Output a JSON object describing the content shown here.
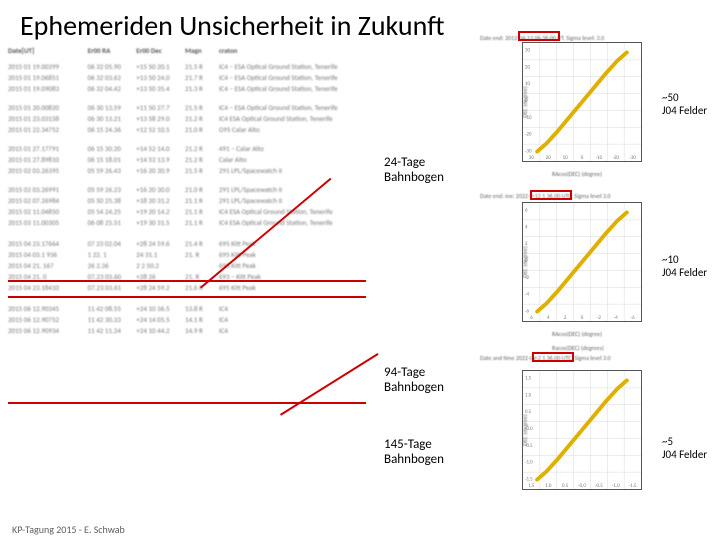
{
  "title": "Ephemeriden Unsicherheit in Zukunft",
  "footer": "KP-Tagung 2015 - E. Schwab",
  "table": {
    "headers": {
      "date": "Date[UT]",
      "ra": "Er00 RA",
      "dec": "Er00 Dec",
      "mag": "Magn",
      "site": "craton"
    },
    "rows": [
      [
        "2015 01 19.00399",
        "06 32 05.90",
        "+15 50 20.1",
        "21.5 R",
        "IC4 – ESA Optical Ground Station, Tenerife"
      ],
      [
        "2015 01 19.06851",
        "06 32 03.62",
        "+13 50 24.0",
        "21.7 R",
        "IC4 – ESA Optical Ground Station, Tenerife"
      ],
      [
        "2015 01 19.09083",
        "06 32 04.42",
        "+13 50 35.4",
        "21.3 R",
        "IC4 – ESA Optical Ground Station, Tenerife"
      ],
      [
        "2015 01 20.00820",
        "06 30 13.59",
        "+11 50 27.7",
        "21.5 R",
        "IC4 – ESA Optical Ground Station, Tenerife"
      ],
      [
        "2015 01 23.03158",
        "06 30 13.21",
        "+13 58 29.0",
        "21.2 R",
        "IC4  ESA Optical Ground Station, Tenerife"
      ],
      [
        "2015 01 22.34752",
        "06 15 24.36",
        "+12 52 10.5",
        "21.0 R",
        "G95  Calar Alto"
      ],
      [
        "2015 01 27.17791",
        "06 15 30.20",
        "+14 52 14.0",
        "21.2 R",
        "491 – Calar Alto"
      ],
      [
        "2015 01 27.89810",
        "06 15 18.01",
        "+14 53 13.9",
        "21.2 R",
        "    Calar Alto"
      ],
      [
        "2015 02 03.26395",
        "05 59 26.43",
        "+16 20 30.9",
        "21.5 R",
        "291  LPL/Spacewatch II"
      ],
      [
        "2015 02 03.26991",
        "05 59 26.23",
        "+16 20 30.0",
        "21.0 R",
        "291  LPL/Spacewatch II"
      ],
      [
        "2015 02 07.26984",
        "05 50 25.38",
        "+18 20 31.2",
        "21.1 R",
        "291  LPL/Spacewatch II"
      ],
      [
        "2015 02 11.04850",
        "05 54 24.25",
        "+19 20 14.2",
        "21.1 R",
        "IC4  ESA Optical Ground Station, Tenerife"
      ],
      [
        "2015 03 11.00305",
        "06 08 25.51",
        "+19 30 31.5",
        "21.1 R",
        "IC4  ESA Optical Ground Station, Tenerife"
      ],
      [
        "2015 04 23.17664",
        "07 23 02.04",
        "+28 24 59.6",
        "21.4 R",
        "695  Kitt Peak"
      ],
      [
        "2015 04 03.1 936",
        "  1 22. 1",
        "  24 31.1",
        "21. R",
        "695  Kitt Peak"
      ],
      [
        "2015 04 21. 167",
        "  26 2.36",
        " 2 2 50.2",
        "    ",
        "695  Kitt Peak"
      ],
      [
        "2015 04 21. 0 ",
        "07.23 03.60",
        "+28  26 ",
        "21. R",
        "693 – Kitt Peak"
      ],
      [
        "2015 04 23.18410",
        "07.23 03.61",
        "+28 24 59.2",
        "21.6 R",
        "695  Kitt Peak"
      ],
      [
        "2015 06 12.90345",
        "11 42 08.55",
        "+24 10 36.5",
        "13.8 R",
        "IC4"
      ],
      [
        "2015 06 12.90752",
        "11 42 30.33",
        "+24 14 05.5",
        "14.1 R",
        "IC4"
      ],
      [
        "2015 06 12.90934",
        "11 42 11.24",
        "+24 10 44.2",
        "14.9 R",
        "IC4"
      ]
    ]
  },
  "labels": {
    "arc24": {
      "l1": "24-Tage",
      "l2": "Bahnbogen"
    },
    "arc94": {
      "l1": "94-Tage",
      "l2": "Bahnbogen"
    },
    "arc145": {
      "l1": "145-Tage",
      "l2": "Bahnbogen"
    }
  },
  "annotations": {
    "a50": {
      "l1": "~50",
      "l2": "J04 Felder"
    },
    "a10": {
      "l1": "~10",
      "l2": "J04 Felder"
    },
    "a5": {
      "l1": "~5",
      "l2": "J04 Felder"
    }
  },
  "charts": {
    "xlabel": "RAcos(DEC) (degree)",
    "ylabel": "DEC (degree)",
    "chart1": {
      "caption_prefix": "Date end:",
      "caption_date": "2012-04-13",
      "caption_suffix": "06:36:00 UT, Sigma level: 3.0",
      "xticks": [
        "30",
        "20",
        "10",
        "0",
        "-10",
        "-20",
        "-30"
      ],
      "yticks": [
        "-30",
        "-20",
        "-10",
        "0",
        "10",
        "20",
        "30"
      ],
      "background": "#ffffff",
      "grid_color": "#d8d8d8",
      "curve_color": "#e0b000",
      "curve_points": [
        [
          0.12,
          0.92
        ],
        [
          0.2,
          0.85
        ],
        [
          0.3,
          0.74
        ],
        [
          0.4,
          0.62
        ],
        [
          0.5,
          0.5
        ],
        [
          0.6,
          0.38
        ],
        [
          0.7,
          0.26
        ],
        [
          0.8,
          0.15
        ],
        [
          0.88,
          0.08
        ]
      ],
      "curve_width": 4
    },
    "chart2": {
      "caption_prefix": "Date end: me:",
      "caption_date": "2022-V-12 1",
      "caption_suffix": "36.00 UTC, Sigma level 3.0",
      "xticks": [
        "6",
        "4",
        "2",
        "0",
        "-2",
        "-4",
        "-6"
      ],
      "yticks": [
        "-6",
        "-4",
        "-2",
        "0",
        "2",
        "4",
        "6"
      ],
      "background": "#ffffff",
      "grid_color": "#d8d8d8",
      "curve_color": "#e0b000",
      "curve_points": [
        [
          0.12,
          0.92
        ],
        [
          0.2,
          0.85
        ],
        [
          0.3,
          0.74
        ],
        [
          0.4,
          0.62
        ],
        [
          0.5,
          0.5
        ],
        [
          0.6,
          0.38
        ],
        [
          0.7,
          0.26
        ],
        [
          0.8,
          0.15
        ],
        [
          0.88,
          0.08
        ]
      ],
      "curve_width": 4
    },
    "chart3": {
      "caption_line1": "Racos(DEC) (degrees)",
      "caption_prefix": "Date and time",
      "caption_date": "2022-0V-2 1",
      "caption_suffix": "36.00 UTC, Sigma level 3.0",
      "xticks": [
        "1.5",
        "1.0",
        "0.5",
        "-0.0",
        "-0.5",
        "-1.0",
        "-1.5"
      ],
      "yticks": [
        "-1.5",
        "-1.0",
        "-0.5",
        "-0.0",
        "0.5",
        "1.0",
        "1.5"
      ],
      "background": "#ffffff",
      "grid_color": "#d8d8d8",
      "curve_color": "#e0b000",
      "curve_points": [
        [
          0.12,
          0.92
        ],
        [
          0.2,
          0.85
        ],
        [
          0.3,
          0.74
        ],
        [
          0.4,
          0.62
        ],
        [
          0.5,
          0.5
        ],
        [
          0.6,
          0.38
        ],
        [
          0.7,
          0.26
        ],
        [
          0.8,
          0.15
        ],
        [
          0.88,
          0.08
        ]
      ],
      "curve_width": 4
    }
  },
  "red_line_color": "#cc0000"
}
